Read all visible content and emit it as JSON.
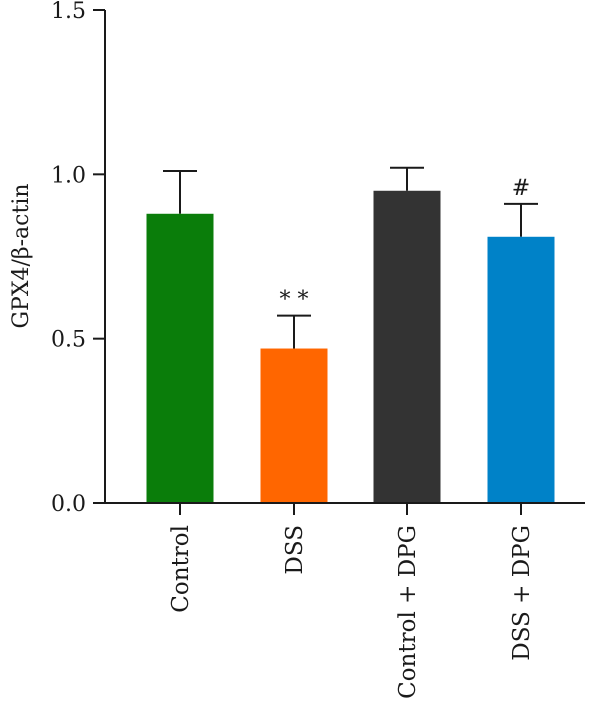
{
  "chart_data": {
    "type": "bar",
    "title": "",
    "xlabel": "",
    "ylabel": "GPX4/β-actin",
    "ylim": [
      0,
      1.5
    ],
    "yticks": [
      "0.0",
      "0.5",
      "1.0",
      "1.5"
    ],
    "grid": false,
    "categories": [
      "Control",
      "DSS",
      "Control + DPG",
      "DSS + DPG"
    ],
    "values": [
      0.88,
      0.47,
      0.95,
      0.81
    ],
    "errors": [
      0.13,
      0.1,
      0.07,
      0.1
    ],
    "colors": [
      "#0a7d0a",
      "#ff6600",
      "#333333",
      "#0082c8"
    ],
    "annotations": [
      "",
      "**",
      "",
      "#"
    ]
  }
}
